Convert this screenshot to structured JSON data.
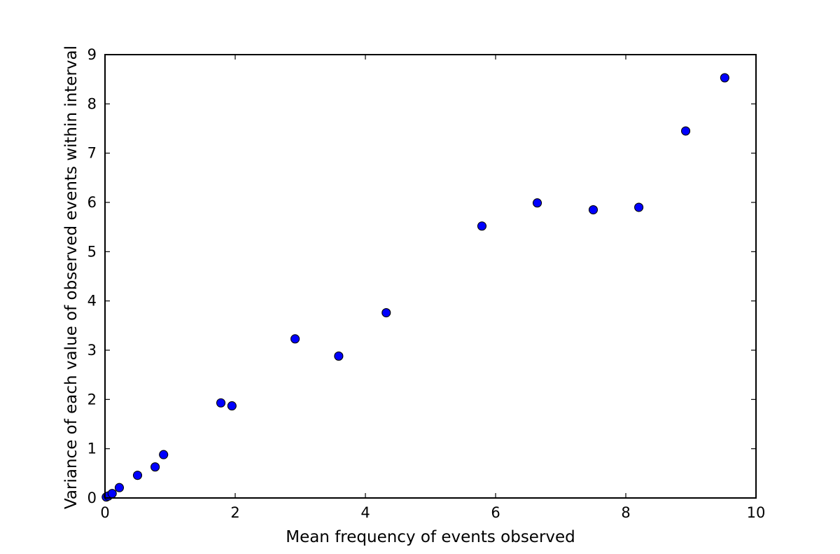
{
  "chart_data": {
    "type": "scatter",
    "title": "",
    "xlabel": "Mean frequency of events observed",
    "ylabel": "Variance of each value of observed events within interval",
    "xlim": [
      0,
      10
    ],
    "ylim": [
      0,
      9
    ],
    "xticks": [
      0,
      2,
      4,
      6,
      8,
      10
    ],
    "yticks": [
      0,
      1,
      2,
      3,
      4,
      5,
      6,
      7,
      8,
      9
    ],
    "xtick_labels": [
      "0",
      "2",
      "4",
      "6",
      "8",
      "10"
    ],
    "ytick_labels": [
      "0",
      "1",
      "2",
      "3",
      "4",
      "5",
      "6",
      "7",
      "8",
      "9"
    ],
    "grid": false,
    "legend": "none",
    "marker_color": "#0000ff",
    "points": [
      {
        "x": 0.02,
        "y": 0.02
      },
      {
        "x": 0.05,
        "y": 0.04
      },
      {
        "x": 0.11,
        "y": 0.09
      },
      {
        "x": 0.22,
        "y": 0.21
      },
      {
        "x": 0.5,
        "y": 0.46
      },
      {
        "x": 0.77,
        "y": 0.63
      },
      {
        "x": 0.9,
        "y": 0.88
      },
      {
        "x": 1.78,
        "y": 1.93
      },
      {
        "x": 1.95,
        "y": 1.87
      },
      {
        "x": 2.92,
        "y": 3.23
      },
      {
        "x": 3.59,
        "y": 2.88
      },
      {
        "x": 4.32,
        "y": 3.76
      },
      {
        "x": 5.79,
        "y": 5.52
      },
      {
        "x": 6.64,
        "y": 5.99
      },
      {
        "x": 7.5,
        "y": 5.85
      },
      {
        "x": 8.2,
        "y": 5.9
      },
      {
        "x": 8.92,
        "y": 7.45
      },
      {
        "x": 9.52,
        "y": 8.53
      }
    ]
  }
}
